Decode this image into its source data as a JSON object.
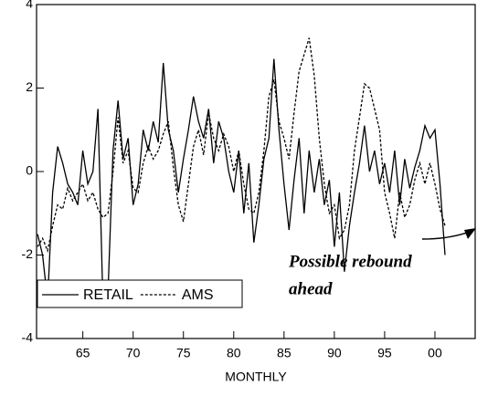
{
  "chart_data": {
    "type": "line",
    "x_label": "MONTHLY",
    "x": [
      1960.5,
      1961.0,
      1961.5,
      1962.0,
      1962.5,
      1963.0,
      1963.5,
      1964.0,
      1964.5,
      1965.0,
      1965.5,
      1966.0,
      1966.5,
      1967.0,
      1967.5,
      1968.0,
      1968.5,
      1969.0,
      1969.5,
      1970.0,
      1970.5,
      1971.0,
      1971.5,
      1972.0,
      1972.5,
      1973.0,
      1973.5,
      1974.0,
      1974.5,
      1975.0,
      1975.5,
      1976.0,
      1976.5,
      1977.0,
      1977.5,
      1978.0,
      1978.5,
      1979.0,
      1979.5,
      1980.0,
      1980.5,
      1981.0,
      1981.5,
      1982.0,
      1982.5,
      1983.0,
      1983.5,
      1984.0,
      1984.5,
      1985.0,
      1985.5,
      1986.0,
      1986.5,
      1987.0,
      1987.5,
      1988.0,
      1988.5,
      1989.0,
      1989.5,
      1990.0,
      1990.5,
      1991.0,
      1991.5,
      1992.0,
      1992.5,
      1993.0,
      1993.5,
      1994.0,
      1994.5,
      1995.0,
      1995.5,
      1996.0,
      1996.5,
      1997.0,
      1997.5,
      1998.0,
      1998.5,
      1999.0,
      1999.5,
      2000.0,
      2000.5,
      2001.0
    ],
    "series": [
      {
        "name": "RETAIL",
        "color": "#000000",
        "dash": false,
        "values": [
          -1.5,
          -2.0,
          -3.1,
          -0.5,
          0.6,
          0.2,
          -0.3,
          -0.5,
          -0.8,
          0.5,
          -0.3,
          0.0,
          1.5,
          -3.2,
          -2.9,
          0.5,
          1.7,
          0.3,
          0.8,
          -0.8,
          -0.3,
          1.0,
          0.5,
          1.2,
          0.7,
          2.6,
          1.0,
          0.5,
          -0.5,
          0.3,
          1.0,
          1.8,
          1.2,
          0.8,
          1.5,
          0.2,
          1.2,
          0.8,
          0.0,
          -0.5,
          0.5,
          -1.0,
          0.2,
          -1.7,
          -0.8,
          0.3,
          0.8,
          2.7,
          1.0,
          -0.3,
          -1.4,
          -0.2,
          0.8,
          -1.0,
          0.5,
          -0.5,
          0.3,
          -0.8,
          -0.2,
          -1.8,
          -0.5,
          -2.4,
          -1.3,
          -0.5,
          0.2,
          1.1,
          0.0,
          0.5,
          -0.3,
          0.2,
          -0.5,
          0.5,
          -0.8,
          0.3,
          -0.4,
          0.1,
          0.5,
          1.1,
          0.8,
          1.0,
          -0.3,
          -2.0
        ]
      },
      {
        "name": "AMS",
        "color": "#000000",
        "dash": true,
        "values": [
          -1.8,
          -1.6,
          -1.9,
          -1.3,
          -0.8,
          -0.9,
          -0.4,
          -0.7,
          -0.5,
          -0.3,
          -0.7,
          -0.5,
          -0.9,
          -1.1,
          -1.0,
          0.0,
          1.3,
          0.2,
          0.5,
          -0.4,
          -0.5,
          0.2,
          0.6,
          0.3,
          0.5,
          0.9,
          1.2,
          0.1,
          -0.8,
          -1.2,
          -0.3,
          0.6,
          1.0,
          0.4,
          1.4,
          0.8,
          0.5,
          0.9,
          0.6,
          0.0,
          0.5,
          -0.3,
          -0.9,
          -1.0,
          -0.5,
          0.5,
          1.8,
          2.2,
          1.2,
          0.8,
          0.3,
          1.4,
          2.4,
          2.8,
          3.2,
          2.3,
          0.8,
          -0.3,
          -1.0,
          -0.8,
          -1.6,
          -1.4,
          -0.8,
          0.5,
          1.3,
          2.1,
          2.0,
          1.5,
          1.0,
          -0.5,
          -1.0,
          -1.6,
          -0.5,
          -1.1,
          -0.8,
          -0.2,
          0.2,
          -0.3,
          0.2,
          -0.3,
          -0.9,
          -1.3
        ]
      }
    ],
    "xlim": [
      1960.4,
      2004
    ],
    "xticks": [
      {
        "value": 1965,
        "label": "65"
      },
      {
        "value": 1970,
        "label": "70"
      },
      {
        "value": 1975,
        "label": "75"
      },
      {
        "value": 1980,
        "label": "80"
      },
      {
        "value": 1985,
        "label": "85"
      },
      {
        "value": 1990,
        "label": "90"
      },
      {
        "value": 1995,
        "label": "95"
      },
      {
        "value": 2000,
        "label": "00"
      }
    ],
    "ylim": [
      -4,
      4
    ],
    "yticks": [
      -4,
      -2,
      0,
      2,
      4
    ],
    "legend": "lower left",
    "annotation_lines": [
      "Possible rebound",
      "ahead"
    ]
  }
}
